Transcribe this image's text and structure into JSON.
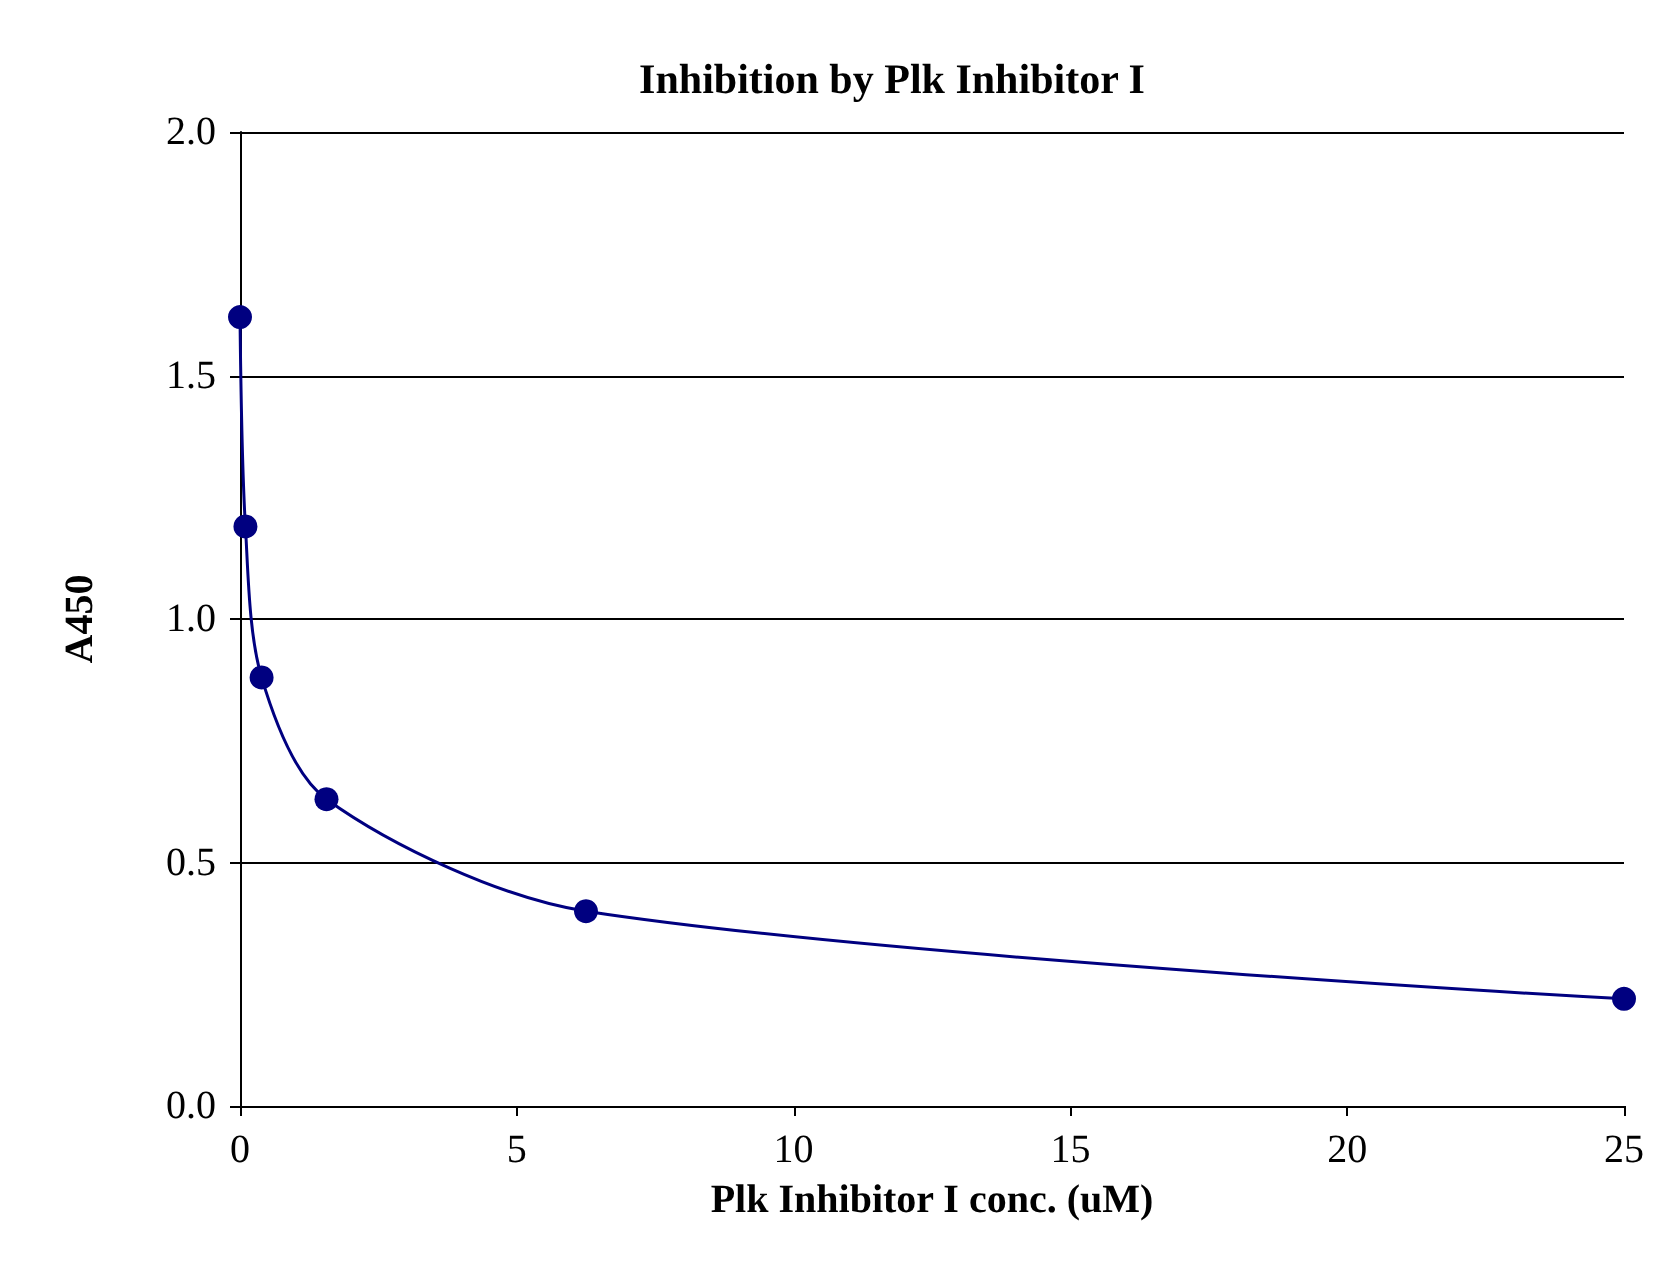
{
  "chart_data": {
    "type": "line",
    "title": "Inhibition by Plk Inhibitor I",
    "xlabel": "Plk Inhibitor I conc. (uM)",
    "ylabel": "A450",
    "x": [
      0,
      0.098,
      0.39,
      1.5625,
      6.25,
      25
    ],
    "series": [
      {
        "color": "#000080",
        "values": [
          1.62,
          1.19,
          0.88,
          0.63,
          0.4,
          0.22
        ]
      }
    ],
    "xlim": [
      0,
      25
    ],
    "xticks": [
      0,
      5,
      10,
      15,
      20,
      25
    ],
    "ylim": [
      0,
      2
    ],
    "yticks": [
      {
        "value": 0,
        "label": "0.0"
      },
      {
        "value": 0.5,
        "label": "0.5"
      },
      {
        "value": 1,
        "label": "1.0"
      },
      {
        "value": 1.5,
        "label": "1.5"
      },
      {
        "value": 2,
        "label": "2.0"
      }
    ],
    "grid": "y",
    "marker": "circle",
    "line_style": "solid"
  }
}
